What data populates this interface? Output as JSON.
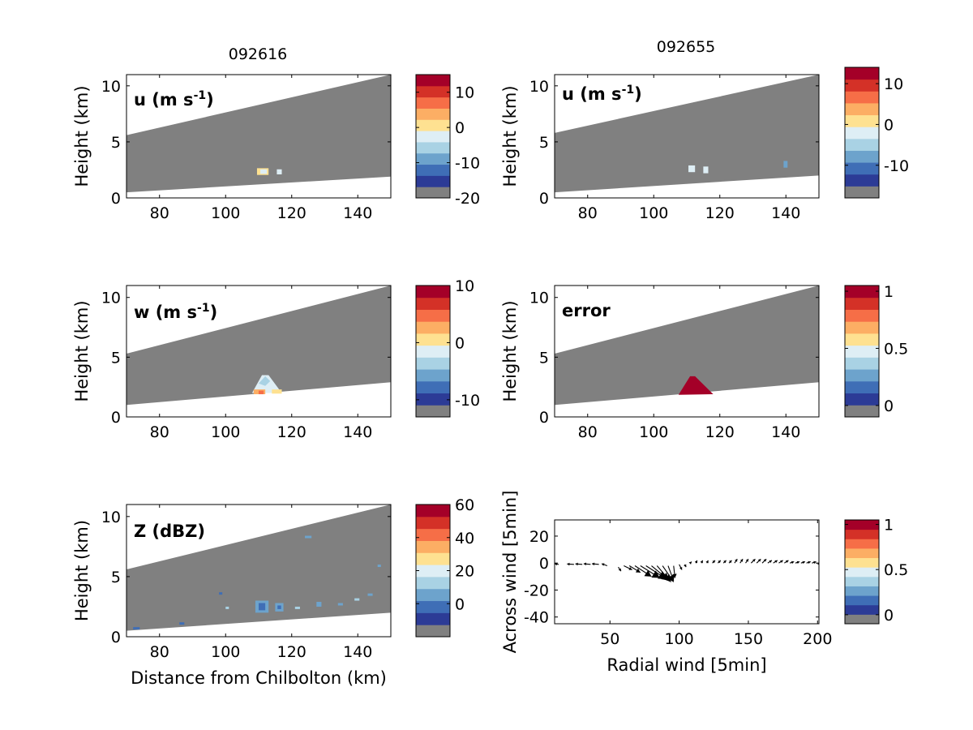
{
  "figure": {
    "column_titles": [
      "092616",
      "092655"
    ]
  },
  "palette": {
    "colors": [
      "#808080",
      "#2c3b96",
      "#3f6eb6",
      "#6da3cc",
      "#a9d2e4",
      "#deeef5",
      "#fee191",
      "#fcae64",
      "#f66e47",
      "#d43127",
      "#a40028"
    ],
    "grey": "#808080",
    "white": "#ffffff"
  },
  "chart_data": [
    {
      "id": "u-left",
      "type": "heatmap",
      "panel_label": "u (m s",
      "panel_label_sup": "-1",
      "panel_label_end": ")",
      "xlabel": "",
      "ylabel": "Height (km)",
      "xlim": [
        70,
        150
      ],
      "ylim": [
        0,
        11
      ],
      "xticks": [
        "80",
        "100",
        "120",
        "140"
      ],
      "yticks": [
        "0",
        "5",
        "10"
      ],
      "beam_top": [
        [
          70,
          5.6
        ],
        [
          150,
          11.0
        ]
      ],
      "beam_bottom": [
        [
          70,
          0.5
        ],
        [
          150,
          1.9
        ]
      ],
      "colorbar": {
        "range": [
          -20,
          15
        ],
        "ticks": [
          "10",
          "0",
          "-10",
          "-20"
        ],
        "tick_values": [
          10,
          0,
          -10,
          -20
        ]
      },
      "features": [
        {
          "points": [
            [
              109.5,
              2.05
            ],
            [
              113,
              2.05
            ],
            [
              113,
              2.65
            ],
            [
              109.5,
              2.65
            ]
          ],
          "color": "#fee191"
        },
        {
          "points": [
            [
              110.5,
              2.15
            ],
            [
              112.5,
              2.15
            ],
            [
              112.5,
              2.55
            ],
            [
              110.5,
              2.55
            ]
          ],
          "color": "#deeef5"
        },
        {
          "points": [
            [
              115.5,
              2.1
            ],
            [
              117,
              2.1
            ],
            [
              117,
              2.55
            ],
            [
              115.5,
              2.55
            ]
          ],
          "color": "#deeef5"
        }
      ]
    },
    {
      "id": "u-right",
      "type": "heatmap",
      "panel_label": "u (m s",
      "panel_label_sup": "-1",
      "panel_label_end": ")",
      "xlabel": "",
      "ylabel": "Height (km)",
      "xlim": [
        70,
        150
      ],
      "ylim": [
        0,
        11
      ],
      "xticks": [
        "80",
        "100",
        "120",
        "140"
      ],
      "yticks": [
        "0",
        "5",
        "10"
      ],
      "beam_top": [
        [
          70,
          5.8
        ],
        [
          150,
          11.0
        ]
      ],
      "beam_bottom": [
        [
          70,
          0.5
        ],
        [
          150,
          2.0
        ]
      ],
      "colorbar": {
        "range": [
          -18,
          14
        ],
        "ticks": [
          "10",
          "0",
          "-10"
        ],
        "tick_values": [
          10,
          0,
          -10
        ]
      },
      "features": [
        {
          "points": [
            [
              110.5,
              2.3
            ],
            [
              112.5,
              2.3
            ],
            [
              112.5,
              2.9
            ],
            [
              110.5,
              2.9
            ]
          ],
          "color": "#deeef5"
        },
        {
          "points": [
            [
              115,
              2.2
            ],
            [
              116.5,
              2.2
            ],
            [
              116.5,
              2.8
            ],
            [
              115,
              2.8
            ]
          ],
          "color": "#deeef5"
        },
        {
          "points": [
            [
              139.3,
              2.7
            ],
            [
              140.5,
              2.7
            ],
            [
              140.5,
              3.3
            ],
            [
              139.3,
              3.3
            ]
          ],
          "color": "#6da3cc"
        }
      ]
    },
    {
      "id": "w-left",
      "type": "heatmap",
      "panel_label": "w (m s",
      "panel_label_sup": "-1",
      "panel_label_end": ")",
      "xlabel": "",
      "ylabel": "Height (km)",
      "xlim": [
        70,
        150
      ],
      "ylim": [
        0,
        11
      ],
      "xticks": [
        "80",
        "100",
        "120",
        "140"
      ],
      "yticks": [
        "0",
        "5",
        "10"
      ],
      "beam_top": [
        [
          70,
          5.3
        ],
        [
          150,
          11.0
        ]
      ],
      "beam_bottom": [
        [
          70,
          1.0
        ],
        [
          150,
          2.9
        ]
      ],
      "colorbar": {
        "range": [
          -13,
          10
        ],
        "ticks": [
          "10",
          "0",
          "-10"
        ],
        "tick_values": [
          10,
          0,
          -10
        ]
      },
      "features": [
        {
          "points": [
            [
              108,
              2.0
            ],
            [
              111,
              3.5
            ],
            [
              113,
              3.5
            ],
            [
              117,
              2.0
            ]
          ],
          "color": "#deeef5"
        },
        {
          "points": [
            [
              110,
              2.8
            ],
            [
              112,
              3.4
            ],
            [
              113.5,
              3.0
            ],
            [
              112,
              2.6
            ]
          ],
          "color": "#a9d2e4"
        },
        {
          "points": [
            [
              108.5,
              1.9
            ],
            [
              112,
              1.9
            ],
            [
              112,
              2.3
            ],
            [
              108.5,
              2.3
            ]
          ],
          "color": "#fcae64"
        },
        {
          "points": [
            [
              110,
              1.9
            ],
            [
              111.5,
              1.9
            ],
            [
              111.5,
              2.2
            ],
            [
              110,
              2.2
            ]
          ],
          "color": "#f66e47"
        },
        {
          "points": [
            [
              114,
              1.95
            ],
            [
              117,
              1.95
            ],
            [
              117,
              2.3
            ],
            [
              114,
              2.3
            ]
          ],
          "color": "#fee191"
        }
      ]
    },
    {
      "id": "error-right",
      "type": "heatmap",
      "panel_label": "error",
      "panel_label_sup": "",
      "panel_label_end": "",
      "xlabel": "",
      "ylabel": "Height (km)",
      "xlim": [
        70,
        150
      ],
      "ylim": [
        0,
        11
      ],
      "xticks": [
        "80",
        "100",
        "120",
        "140"
      ],
      "yticks": [
        "0",
        "5",
        "10"
      ],
      "beam_top": [
        [
          70,
          5.3
        ],
        [
          150,
          11.0
        ]
      ],
      "beam_bottom": [
        [
          70,
          1.0
        ],
        [
          150,
          2.9
        ]
      ],
      "colorbar": {
        "range": [
          -0.1,
          1.05
        ],
        "ticks": [
          "1",
          "0.5",
          "0"
        ],
        "tick_values": [
          1,
          0.5,
          0
        ]
      },
      "features": [
        {
          "points": [
            [
              107.5,
              1.85
            ],
            [
              111,
              3.4
            ],
            [
              112.5,
              3.4
            ],
            [
              118,
              1.9
            ]
          ],
          "color": "#a40028"
        }
      ]
    },
    {
      "id": "z-left",
      "type": "heatmap",
      "panel_label": "Z (dBZ)",
      "panel_label_sup": "",
      "panel_label_end": "",
      "xlabel": "Distance from Chilbolton (km)",
      "ylabel": "Height (km)",
      "xlim": [
        70,
        150
      ],
      "ylim": [
        0,
        11
      ],
      "xticks": [
        "80",
        "100",
        "120",
        "140"
      ],
      "yticks": [
        "0",
        "5",
        "10"
      ],
      "beam_top": [
        [
          70,
          5.6
        ],
        [
          150,
          11.0
        ]
      ],
      "beam_bottom": [
        [
          70,
          0.5
        ],
        [
          150,
          2.0
        ]
      ],
      "colorbar": {
        "range": [
          -20,
          60
        ],
        "ticks": [
          "60",
          "40",
          "20",
          "0"
        ],
        "tick_values": [
          60,
          40,
          20,
          0
        ]
      },
      "features": [
        {
          "points": [
            [
              109,
              2.0
            ],
            [
              113,
              2.0
            ],
            [
              113,
              3.0
            ],
            [
              109,
              3.0
            ]
          ],
          "color": "#6da3cc"
        },
        {
          "points": [
            [
              110,
              2.2
            ],
            [
              112,
              2.2
            ],
            [
              112,
              2.8
            ],
            [
              110,
              2.8
            ]
          ],
          "color": "#3f6eb6"
        },
        {
          "points": [
            [
              115,
              2.1
            ],
            [
              117.5,
              2.1
            ],
            [
              117.5,
              2.8
            ],
            [
              115,
              2.8
            ]
          ],
          "color": "#6da3cc"
        },
        {
          "points": [
            [
              115.7,
              2.3
            ],
            [
              116.8,
              2.3
            ],
            [
              116.8,
              2.6
            ],
            [
              115.7,
              2.6
            ]
          ],
          "color": "#3f6eb6"
        },
        {
          "points": [
            [
              127.5,
              2.5
            ],
            [
              129,
              2.5
            ],
            [
              129,
              2.9
            ],
            [
              127.5,
              2.9
            ]
          ],
          "color": "#6da3cc"
        },
        {
          "points": [
            [
              121,
              2.3
            ],
            [
              122.5,
              2.3
            ],
            [
              122.5,
              2.5
            ],
            [
              121,
              2.5
            ]
          ],
          "color": "#a9d2e4"
        },
        {
          "points": [
            [
              124,
              8.2
            ],
            [
              126,
              8.2
            ],
            [
              126,
              8.4
            ],
            [
              124,
              8.4
            ]
          ],
          "color": "#6da3cc"
        },
        {
          "points": [
            [
              146,
              5.8
            ],
            [
              147,
              5.8
            ],
            [
              147,
              6.0
            ],
            [
              146,
              6.0
            ]
          ],
          "color": "#6da3cc"
        },
        {
          "points": [
            [
              98,
              3.5
            ],
            [
              99,
              3.5
            ],
            [
              99,
              3.7
            ],
            [
              98,
              3.7
            ]
          ],
          "color": "#3f6eb6"
        },
        {
          "points": [
            [
              143,
              3.4
            ],
            [
              144.5,
              3.4
            ],
            [
              144.5,
              3.6
            ],
            [
              143,
              3.6
            ]
          ],
          "color": "#6da3cc"
        },
        {
          "points": [
            [
              86,
              1.0
            ],
            [
              87.5,
              1.0
            ],
            [
              87.5,
              1.2
            ],
            [
              86,
              1.2
            ]
          ],
          "color": "#3f6eb6"
        },
        {
          "points": [
            [
              72,
              0.6
            ],
            [
              74,
              0.6
            ],
            [
              74,
              0.8
            ],
            [
              72,
              0.8
            ]
          ],
          "color": "#3f6eb6"
        },
        {
          "points": [
            [
              134,
              2.6
            ],
            [
              135.5,
              2.6
            ],
            [
              135.5,
              2.8
            ],
            [
              134,
              2.8
            ]
          ],
          "color": "#6da3cc"
        },
        {
          "points": [
            [
              139,
              3.0
            ],
            [
              140.5,
              3.0
            ],
            [
              140.5,
              3.2
            ],
            [
              139,
              3.2
            ]
          ],
          "color": "#a9d2e4"
        },
        {
          "points": [
            [
              100,
              2.3
            ],
            [
              101,
              2.3
            ],
            [
              101,
              2.5
            ],
            [
              100,
              2.5
            ]
          ],
          "color": "#a9d2e4"
        }
      ]
    },
    {
      "id": "quiver-right",
      "type": "quiver",
      "panel_label": "",
      "xlabel": "Radial wind [5min]",
      "ylabel": "Across wind [5min]",
      "xlim": [
        10,
        201
      ],
      "ylim": [
        -45,
        32
      ],
      "xticks": [
        "50",
        "100",
        "150",
        "200"
      ],
      "xtick_values": [
        50,
        100,
        150,
        200
      ],
      "yticks": [
        "20",
        "0",
        "-20",
        "-40"
      ],
      "ytick_values": [
        20,
        0,
        -20,
        -40
      ],
      "colorbar": {
        "range": [
          -0.1,
          1.05
        ],
        "ticks": [
          "1",
          "0.5",
          "0"
        ],
        "tick_values": [
          1,
          0.5,
          0
        ]
      },
      "arrows": [
        [
          13,
          -1,
          -3,
          0.5
        ],
        [
          24,
          -1,
          -5,
          0.3
        ],
        [
          30,
          -1,
          -5,
          0.4
        ],
        [
          36,
          -1,
          -5,
          0.5
        ],
        [
          42,
          -1,
          -5,
          0.5
        ],
        [
          48,
          -2,
          -4,
          1.5
        ],
        [
          56,
          -3,
          2,
          -3
        ],
        [
          60,
          -2,
          6,
          -3
        ],
        [
          64,
          -2,
          8,
          -5
        ],
        [
          68,
          -2,
          12,
          -8
        ],
        [
          72,
          -2,
          14,
          -9
        ],
        [
          76,
          -2,
          15,
          -10
        ],
        [
          80,
          -2,
          13,
          -11
        ],
        [
          84,
          -2,
          10,
          -12
        ],
        [
          88,
          -2,
          8,
          -12
        ],
        [
          92,
          -2,
          4,
          -11
        ],
        [
          96,
          -2,
          1,
          -9
        ],
        [
          100,
          -1,
          2,
          -4
        ],
        [
          104,
          -1,
          1,
          -2
        ],
        [
          108,
          0,
          1,
          1
        ],
        [
          112,
          0,
          1,
          2
        ],
        [
          116,
          0,
          1,
          2
        ],
        [
          120,
          0,
          1,
          2
        ],
        [
          124,
          0,
          2,
          2
        ],
        [
          128,
          0,
          2,
          2
        ],
        [
          132,
          0,
          2,
          2
        ],
        [
          136,
          0,
          2,
          2
        ],
        [
          140,
          0,
          2,
          3
        ],
        [
          144,
          0,
          2,
          3
        ],
        [
          148,
          0,
          2,
          3
        ],
        [
          152,
          0,
          3,
          3
        ],
        [
          156,
          0,
          3,
          3
        ],
        [
          160,
          0,
          3,
          3
        ],
        [
          164,
          0,
          3,
          2
        ],
        [
          168,
          0,
          3,
          2
        ],
        [
          172,
          0,
          3,
          2
        ],
        [
          176,
          0,
          3,
          2
        ],
        [
          180,
          0,
          3,
          1
        ],
        [
          184,
          0,
          3,
          1
        ],
        [
          188,
          0,
          3,
          1
        ],
        [
          192,
          0,
          3,
          1
        ],
        [
          196,
          0,
          3,
          1
        ],
        [
          200,
          0,
          2,
          -1
        ]
      ]
    }
  ]
}
